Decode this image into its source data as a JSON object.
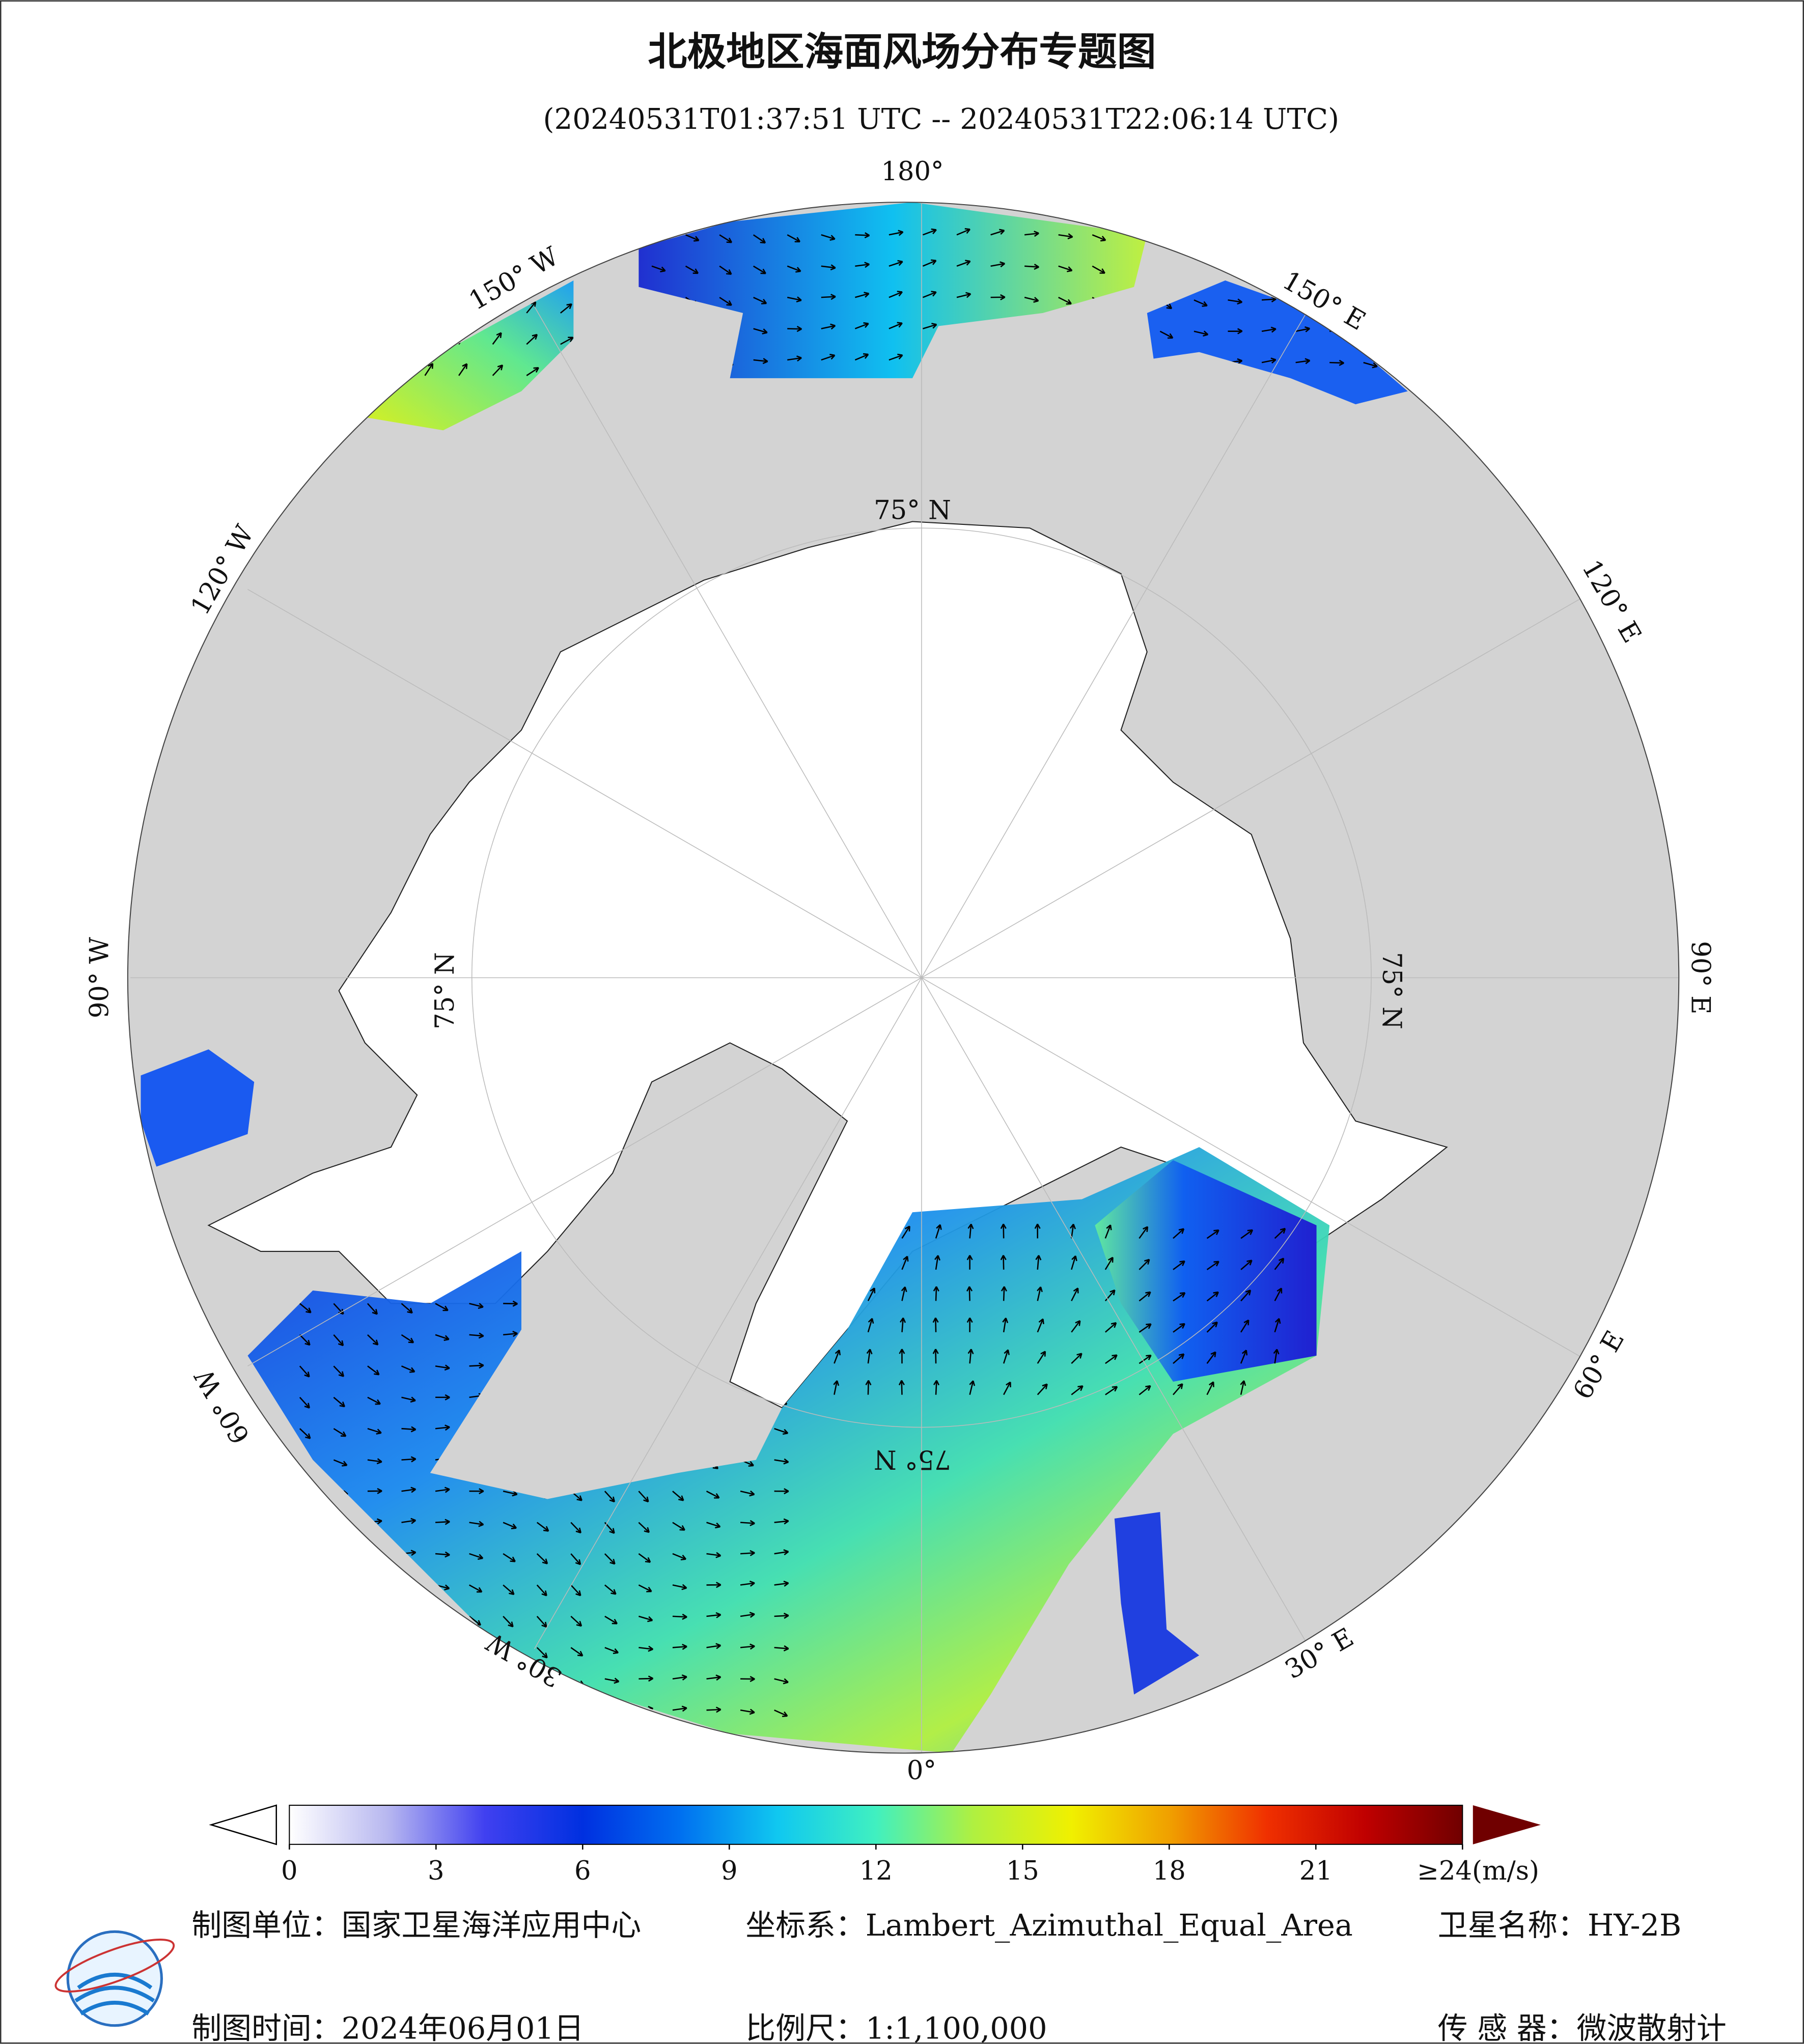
{
  "header": {
    "title": "北极地区海面风场分布专题图",
    "subtitle": "(20240531T01:37:51 UTC -- 20240531T22:06:14 UTC)"
  },
  "map": {
    "longitude_labels": [
      "180°",
      "150° E",
      "120° E",
      "90° E",
      "60° E",
      "30° E",
      "0°",
      "30° W",
      "60° W",
      "90° W",
      "120° W",
      "150° W"
    ],
    "latitude_labels": [
      "75° N",
      "75° N",
      "75° N",
      "75° N"
    ]
  },
  "colorbar": {
    "range": [
      0,
      24
    ],
    "ticks": [
      0,
      3,
      6,
      9,
      12,
      15,
      18,
      21,
      {
        "value": 24,
        "label": "≥24(m/s)"
      }
    ],
    "colors": [
      "#ffffff",
      "#b8b8f0",
      "#4040f0",
      "#0030e0",
      "#0070f0",
      "#10c8f0",
      "#40f0c0",
      "#b0f040",
      "#f0f000",
      "#f0a000",
      "#f03000",
      "#c00000",
      "#700000"
    ]
  },
  "footer": {
    "unit": "制图单位：国家卫星海洋应用中心",
    "projection": "坐标系：Lambert_Azimuthal_Equal_Area",
    "satellite": "卫星名称：HY-2B",
    "date": "制图时间：2024年06月01日",
    "scale": "比例尺：1:1,100,000",
    "sensor": "传 感 器：微波散射计"
  }
}
